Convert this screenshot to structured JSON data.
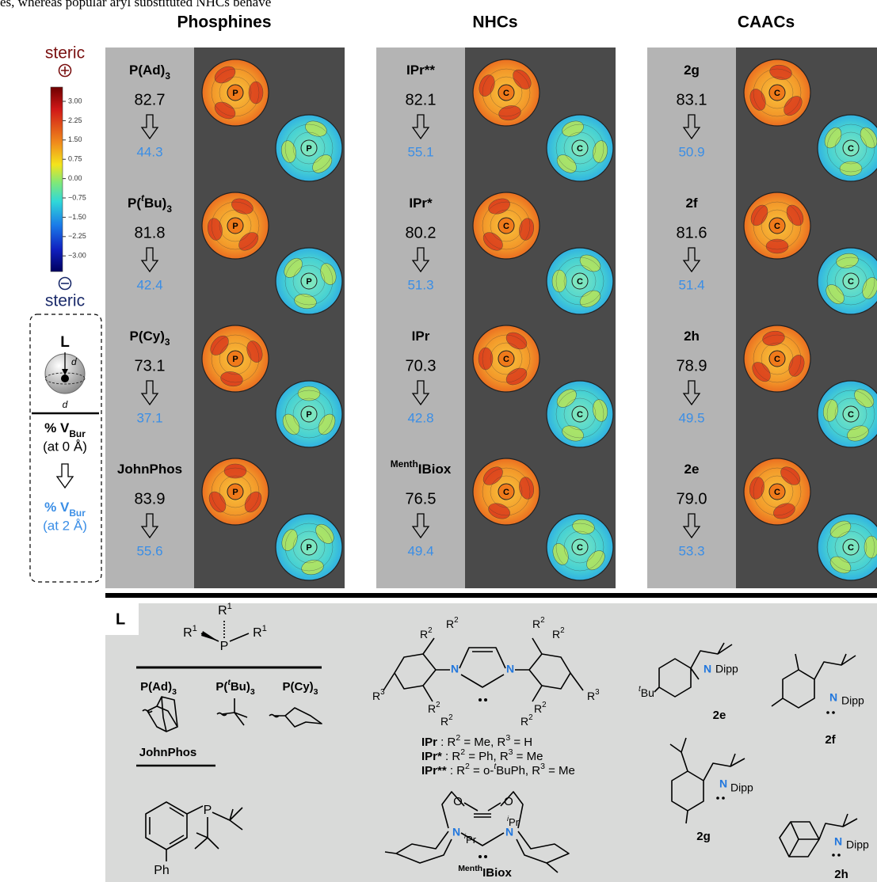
{
  "top_text": "es, whereas popular aryl substituted NHCs behave",
  "legend": {
    "steric_top": "steric",
    "steric_bottom": "steric",
    "ticks": [
      "3.00",
      "2.25",
      "1.50",
      "0.75",
      "0.00",
      "−0.75",
      "−1.50",
      "−2.25",
      "−3.00"
    ]
  },
  "key": {
    "ligand": "L",
    "distance": "d",
    "vbur": [
      {
        "text": "% V"
      },
      {
        "sub": "Bur"
      }
    ],
    "at_0": "(at 0 Å)",
    "at_2": "(at 2 Å)"
  },
  "columns": [
    {
      "title": "Phosphines",
      "atom": "P",
      "entries": [
        {
          "name": [
            {
              "text": "P(Ad)"
            },
            {
              "sub": "3"
            }
          ],
          "vbur_0": "82.7",
          "vbur_2": "44.3"
        },
        {
          "name": [
            {
              "text": "P("
            },
            {
              "italic_sup": "t"
            },
            {
              "text": "Bu)"
            },
            {
              "sub": "3"
            }
          ],
          "vbur_0": "81.8",
          "vbur_2": "42.4"
        },
        {
          "name": [
            {
              "text": "P(Cy)"
            },
            {
              "sub": "3"
            }
          ],
          "vbur_0": "73.1",
          "vbur_2": "37.1"
        },
        {
          "name": [
            {
              "text": "JohnPhos"
            }
          ],
          "vbur_0": "83.9",
          "vbur_2": "55.6"
        }
      ]
    },
    {
      "title": "NHCs",
      "atom": "C",
      "entries": [
        {
          "name": [
            {
              "text": "IPr**"
            }
          ],
          "vbur_0": "82.1",
          "vbur_2": "55.1"
        },
        {
          "name": [
            {
              "text": "IPr*"
            }
          ],
          "vbur_0": "80.2",
          "vbur_2": "51.3"
        },
        {
          "name": [
            {
              "text": "IPr"
            }
          ],
          "vbur_0": "70.3",
          "vbur_2": "42.8"
        },
        {
          "name": [
            {
              "sup": "Menth"
            },
            {
              "text": "IBiox"
            }
          ],
          "vbur_0": "76.5",
          "vbur_2": "49.4"
        }
      ]
    },
    {
      "title": "CAACs",
      "atom": "C",
      "entries": [
        {
          "name": [
            {
              "text": "2g"
            }
          ],
          "vbur_0": "83.1",
          "vbur_2": "50.9"
        },
        {
          "name": [
            {
              "text": "2f"
            }
          ],
          "vbur_0": "81.6",
          "vbur_2": "51.4"
        },
        {
          "name": [
            {
              "text": "2h"
            }
          ],
          "vbur_0": "78.9",
          "vbur_2": "49.5"
        },
        {
          "name": [
            {
              "text": "2e"
            }
          ],
          "vbur_0": "79.0",
          "vbur_2": "53.3"
        }
      ]
    }
  ],
  "structures": {
    "label": "L",
    "r1": [
      {
        "text": "R"
      },
      {
        "sup": "1"
      }
    ],
    "p": "P",
    "ph": "Ph",
    "r2": [
      {
        "text": "R"
      },
      {
        "sup": "2"
      }
    ],
    "r3": [
      {
        "text": "R"
      },
      {
        "sup": "3"
      }
    ],
    "n": "N",
    "o": "O",
    "ipr": [
      {
        "italic_sup": "i"
      },
      {
        "text": "Pr"
      }
    ],
    "definitions": [
      [
        {
          "bold": "IPr"
        },
        {
          "text": " : R"
        },
        {
          "sup": "2"
        },
        {
          "text": " = Me, R"
        },
        {
          "sup": "3"
        },
        {
          "text": " = H"
        }
      ],
      [
        {
          "bold": "IPr*"
        },
        {
          "text": " : R"
        },
        {
          "sup": "2"
        },
        {
          "text": " = Ph, R"
        },
        {
          "sup": "3"
        },
        {
          "text": " = Me"
        }
      ],
      [
        {
          "bold": "IPr**"
        },
        {
          "text": " : R"
        },
        {
          "sup": "2"
        },
        {
          "text": " = o-"
        },
        {
          "italic_sup": "t"
        },
        {
          "text": "BuPh, R"
        },
        {
          "sup": "3"
        },
        {
          "text": " = Me"
        }
      ]
    ],
    "tbu": [
      {
        "italic_sup": "t"
      },
      {
        "text": "Bu"
      }
    ],
    "dipp": "Dipp"
  }
}
